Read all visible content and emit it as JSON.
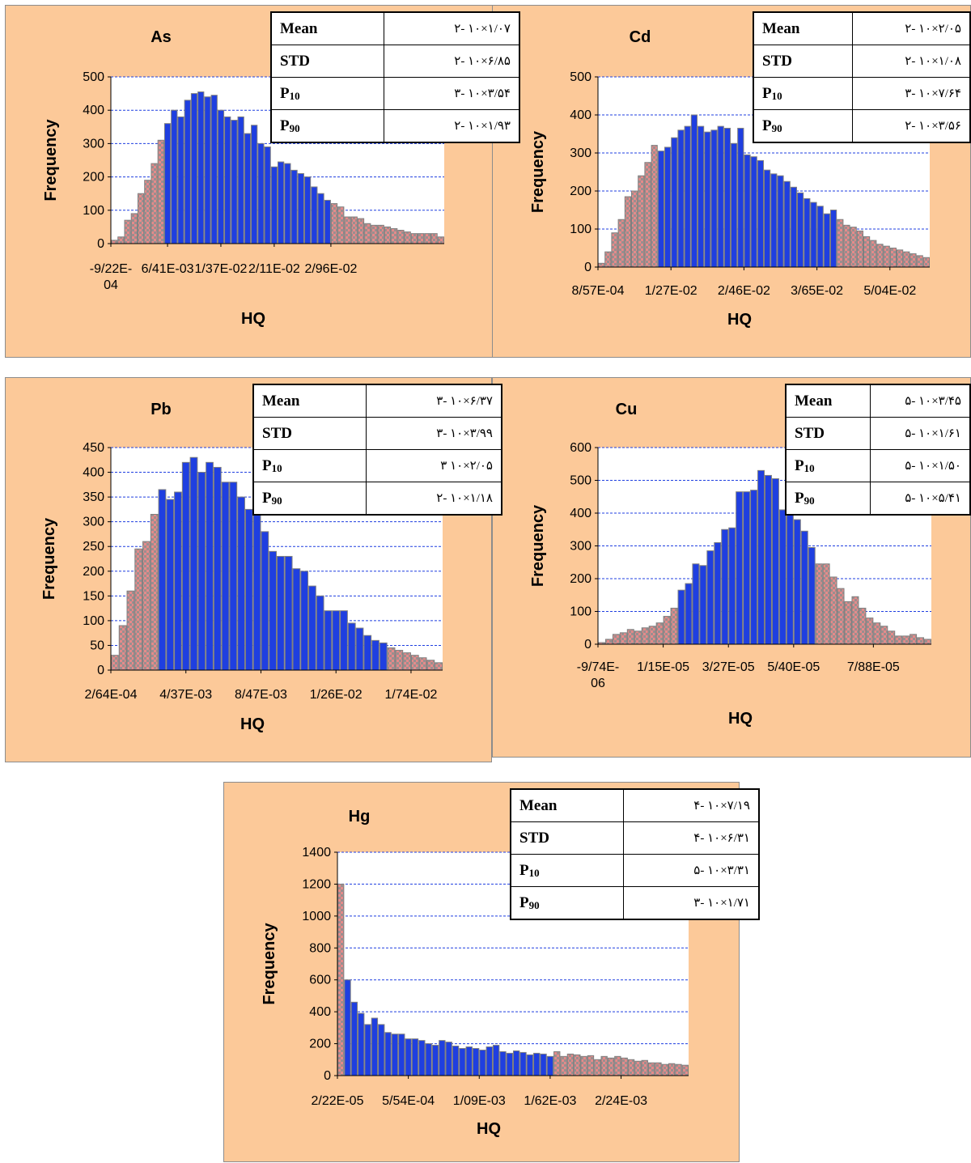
{
  "colors": {
    "panel_bg": "#fcc999",
    "blue_bar": "#1f3fe0",
    "pink_bar": "#e48a8a",
    "bar_edge": "#7f7f7f",
    "grid": "#1f3fe0"
  },
  "chart_data": [
    {
      "type": "bar",
      "title": "As",
      "xlabel": "HQ",
      "ylabel": "Frequency",
      "yticks": [
        "0",
        "100",
        "200",
        "300",
        "400",
        "500"
      ],
      "ylim": [
        0,
        500
      ],
      "xtick_labels": [
        "-9/22E-\n04",
        "6/41E-03",
        "1/37E-02",
        "2/11E-02",
        "2/96E-02"
      ],
      "xtick_bins": [
        0,
        8.5,
        16.5,
        24.5,
        33
      ],
      "blue_range": [
        8,
        33
      ],
      "values": [
        10,
        20,
        70,
        90,
        150,
        190,
        240,
        310,
        360,
        400,
        380,
        430,
        450,
        455,
        440,
        445,
        400,
        380,
        370,
        380,
        330,
        355,
        300,
        290,
        230,
        245,
        240,
        220,
        210,
        200,
        170,
        150,
        130,
        120,
        110,
        80,
        80,
        75,
        60,
        55,
        55,
        50,
        45,
        40,
        35,
        30,
        30,
        30,
        30,
        20
      ],
      "stats": [
        {
          "label": "Mean",
          "sub": "",
          "value": "۱/۰۷×۱۰ -۲"
        },
        {
          "label": "STD",
          "sub": "",
          "value": "۶/۸۵×۱۰ -۲"
        },
        {
          "label": "P",
          "sub": "10",
          "value": "۳/۵۴×۱۰ -۳"
        },
        {
          "label": "P",
          "sub": "90",
          "value": "۱/۹۳×۱۰ -۲"
        }
      ]
    },
    {
      "type": "bar",
      "title": "Cd",
      "xlabel": "HQ",
      "ylabel": "Frequency",
      "yticks": [
        "0",
        "100",
        "200",
        "300",
        "400",
        "500"
      ],
      "ylim": [
        0,
        500
      ],
      "xtick_labels": [
        "8/57E-04",
        "1/27E-02",
        "2/46E-02",
        "3/65E-02",
        "5/04E-02"
      ],
      "xtick_bins": [
        0,
        11,
        22,
        33,
        44
      ],
      "blue_range": [
        9,
        36
      ],
      "values": [
        10,
        40,
        90,
        125,
        185,
        200,
        240,
        275,
        320,
        305,
        315,
        340,
        360,
        370,
        400,
        370,
        355,
        360,
        370,
        365,
        325,
        365,
        295,
        290,
        280,
        255,
        245,
        240,
        225,
        210,
        195,
        180,
        170,
        160,
        140,
        150,
        125,
        110,
        105,
        95,
        80,
        70,
        60,
        55,
        50,
        45,
        40,
        35,
        30,
        25
      ],
      "stats": [
        {
          "label": "Mean",
          "sub": "",
          "value": "۲/۰۵×۱۰ -۲"
        },
        {
          "label": "STD",
          "sub": "",
          "value": "۱/۰۸×۱۰ -۲"
        },
        {
          "label": "P",
          "sub": "10",
          "value": "۷/۶۴×۱۰ -۳"
        },
        {
          "label": "P",
          "sub": "90",
          "value": "۳/۵۶×۱۰ -۲"
        }
      ]
    },
    {
      "type": "bar",
      "title": "Pb",
      "xlabel": "HQ",
      "ylabel": "Frequency",
      "yticks": [
        "0",
        "50",
        "100",
        "150",
        "200",
        "250",
        "300",
        "350",
        "400",
        "450"
      ],
      "ylim": [
        0,
        450
      ],
      "xtick_labels": [
        "2/64E-04",
        "4/37E-03",
        "8/47E-03",
        "1/26E-02",
        "1/74E-02"
      ],
      "xtick_bins": [
        0,
        9.5,
        19,
        28.5,
        38
      ],
      "blue_range": [
        6,
        35
      ],
      "values": [
        30,
        90,
        160,
        245,
        260,
        315,
        365,
        345,
        360,
        420,
        430,
        400,
        420,
        410,
        380,
        380,
        350,
        325,
        325,
        280,
        240,
        230,
        230,
        205,
        200,
        170,
        150,
        120,
        120,
        120,
        95,
        85,
        70,
        60,
        55,
        45,
        40,
        35,
        30,
        25,
        20,
        15
      ],
      "stats": [
        {
          "label": "Mean",
          "sub": "",
          "value": "۶/۳۷×۱۰ -۳"
        },
        {
          "label": "STD",
          "sub": "",
          "value": "۳/۹۹×۱۰ -۳"
        },
        {
          "label": "P",
          "sub": "10",
          "value": "۲/۰۵×۱۰ ۳"
        },
        {
          "label": "P",
          "sub": "90",
          "value": "۱/۱۸×۱۰ -۲"
        }
      ]
    },
    {
      "type": "bar",
      "title": "Cu",
      "xlabel": "HQ",
      "ylabel": "Frequency",
      "yticks": [
        "0",
        "100",
        "200",
        "300",
        "400",
        "500",
        "600"
      ],
      "ylim": [
        0,
        600
      ],
      "xtick_labels": [
        "-9/74E-\n06",
        "1/15E-05",
        "3/27E-05",
        "5/40E-05",
        "7/88E-05"
      ],
      "xtick_bins": [
        0,
        9,
        18,
        27,
        38
      ],
      "blue_range": [
        11,
        30
      ],
      "values": [
        5,
        15,
        30,
        35,
        45,
        40,
        50,
        55,
        65,
        85,
        110,
        165,
        185,
        245,
        240,
        285,
        310,
        350,
        355,
        465,
        465,
        470,
        530,
        515,
        505,
        410,
        395,
        380,
        345,
        295,
        245,
        245,
        205,
        170,
        130,
        145,
        110,
        80,
        65,
        55,
        40,
        25,
        25,
        30,
        20,
        15
      ],
      "stats": [
        {
          "label": "Mean",
          "sub": "",
          "value": "۳/۴۵×۱۰ -۵"
        },
        {
          "label": "STD",
          "sub": "",
          "value": "۱/۶۱×۱۰ -۵"
        },
        {
          "label": "P",
          "sub": "10",
          "value": "۱/۵۰×۱۰ -۵"
        },
        {
          "label": "P",
          "sub": "90",
          "value": "۵/۴۱×۱۰ -۵"
        }
      ]
    },
    {
      "type": "bar",
      "title": "Hg",
      "xlabel": "HQ",
      "ylabel": "Frequency",
      "yticks": [
        "0",
        "200",
        "400",
        "600",
        "800",
        "1000",
        "1200",
        "1400"
      ],
      "ylim": [
        0,
        1400
      ],
      "xtick_labels": [
        "2/22E-05",
        "5/54E-04",
        "1/09E-03",
        "1/62E-03",
        "2/24E-03"
      ],
      "xtick_bins": [
        0,
        10.5,
        21,
        31.5,
        42
      ],
      "blue_range": [
        1,
        32
      ],
      "values": [
        1200,
        600,
        460,
        390,
        320,
        360,
        320,
        270,
        260,
        260,
        230,
        230,
        220,
        200,
        190,
        220,
        210,
        185,
        170,
        180,
        170,
        160,
        180,
        190,
        150,
        140,
        155,
        145,
        130,
        140,
        135,
        120,
        150,
        120,
        135,
        130,
        120,
        125,
        100,
        120,
        110,
        120,
        110,
        100,
        90,
        95,
        80,
        80,
        70,
        75,
        70,
        65
      ],
      "stats": [
        {
          "label": "Mean",
          "sub": "",
          "value": "۷/۱۹×۱۰ -۴"
        },
        {
          "label": "STD",
          "sub": "",
          "value": "۶/۳۱×۱۰ -۴"
        },
        {
          "label": "P",
          "sub": "10",
          "value": "۳/۳۱×۱۰ -۵"
        },
        {
          "label": "P",
          "sub": "90",
          "value": "۱/۷۱×۱۰ -۳"
        }
      ]
    }
  ]
}
